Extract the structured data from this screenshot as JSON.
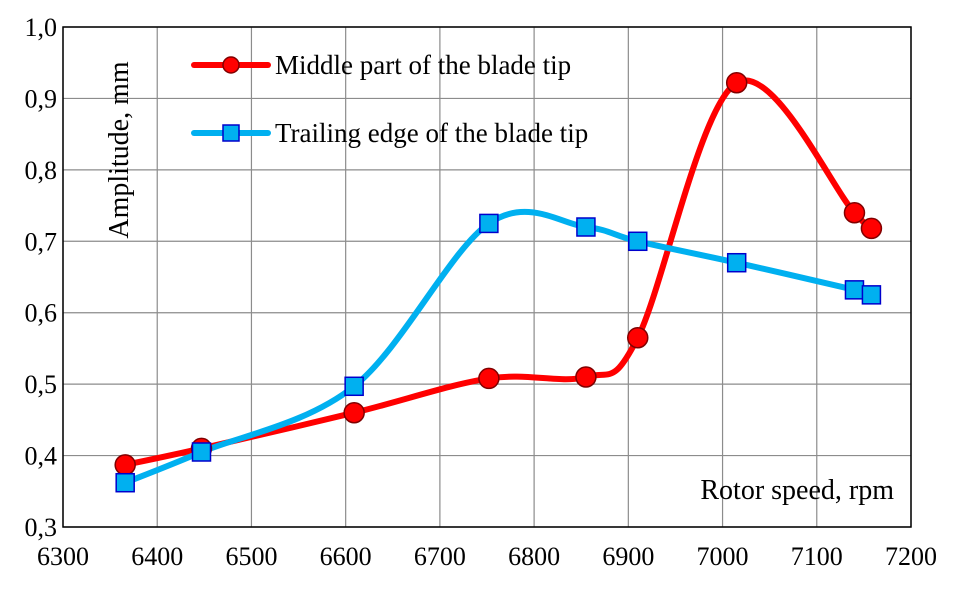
{
  "chart_data": {
    "type": "line",
    "xlabel": "Rotor speed, rpm",
    "ylabel": "Amplitude, mm",
    "xlim": [
      6300,
      7200
    ],
    "ylim": [
      0.3,
      1.0
    ],
    "x_ticks": [
      6300,
      6400,
      6500,
      6600,
      6700,
      6800,
      6900,
      7000,
      7100,
      7200
    ],
    "x_tick_labels": [
      "6300",
      "6400",
      "6500",
      "6600",
      "6700",
      "6800",
      "6900",
      "7000",
      "7100",
      "7200"
    ],
    "y_ticks": [
      0.3,
      0.4,
      0.5,
      0.6,
      0.7,
      0.8,
      0.9,
      1.0
    ],
    "y_tick_labels": [
      "0,3",
      "0,4",
      "0,5",
      "0,6",
      "0,7",
      "0,8",
      "0,9",
      "1,0"
    ],
    "grid": true,
    "legend_position": "top-left",
    "series": [
      {
        "name": "Middle part of the blade tip",
        "color": "#ff0000",
        "marker": "circle",
        "x": [
          6366,
          6447,
          6609,
          6752,
          6855,
          6910,
          7015,
          7140,
          7158
        ],
        "y": [
          0.387,
          0.41,
          0.46,
          0.508,
          0.51,
          0.565,
          0.922,
          0.74,
          0.718
        ]
      },
      {
        "name": "Trailing edge of the blade tip",
        "color": "#00b0f0",
        "marker": "square",
        "x": [
          6366,
          6447,
          6609,
          6752,
          6855,
          6910,
          7015,
          7140,
          7158
        ],
        "y": [
          0.362,
          0.405,
          0.497,
          0.725,
          0.72,
          0.7,
          0.67,
          0.632,
          0.625
        ]
      }
    ]
  }
}
